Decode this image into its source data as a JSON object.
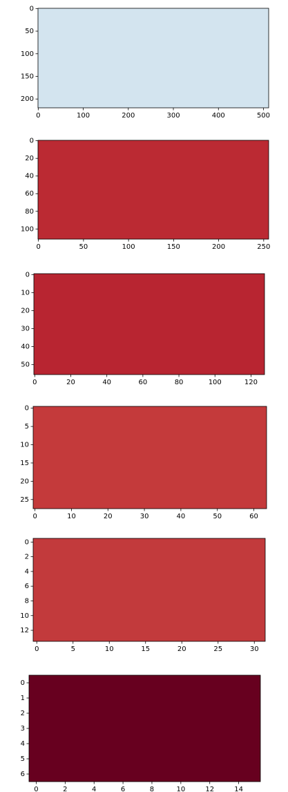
{
  "chart_data": [
    {
      "type": "heatmap",
      "xlim": [
        -0.5,
        511.5
      ],
      "ylim": [
        219.5,
        -0.5
      ],
      "xticks": [
        0,
        100,
        200,
        300,
        400,
        500
      ],
      "yticks": [
        0,
        50,
        100,
        150,
        200
      ],
      "color": "#d3e4ef"
    },
    {
      "type": "heatmap",
      "xlim": [
        -0.5,
        255.5
      ],
      "ylim": [
        111.5,
        -0.5
      ],
      "xticks": [
        0,
        50,
        100,
        150,
        200,
        250
      ],
      "yticks": [
        0,
        20,
        40,
        60,
        80,
        100
      ],
      "color": "#bb2a33"
    },
    {
      "type": "heatmap",
      "xlim": [
        -0.5,
        127.5
      ],
      "ylim": [
        55.5,
        -0.5
      ],
      "xticks": [
        0,
        20,
        40,
        60,
        80,
        100,
        120
      ],
      "yticks": [
        0,
        10,
        20,
        30,
        40,
        50
      ],
      "color": "#b82531"
    },
    {
      "type": "heatmap",
      "xlim": [
        -0.5,
        63.5
      ],
      "ylim": [
        27.5,
        -0.5
      ],
      "xticks": [
        0,
        10,
        20,
        30,
        40,
        50,
        60
      ],
      "yticks": [
        0,
        5,
        10,
        15,
        20,
        25
      ],
      "color": "#c43a3b"
    },
    {
      "type": "heatmap",
      "xlim": [
        -0.5,
        31.5
      ],
      "ylim": [
        13.5,
        -0.5
      ],
      "xticks": [
        0,
        5,
        10,
        15,
        20,
        25,
        30
      ],
      "yticks": [
        0,
        2,
        4,
        6,
        8,
        10,
        12
      ],
      "color": "#c23a3c"
    },
    {
      "type": "heatmap",
      "xlim": [
        -0.5,
        15.5
      ],
      "ylim": [
        6.5,
        -0.5
      ],
      "xticks": [
        0,
        2,
        4,
        6,
        8,
        10,
        12,
        14
      ],
      "yticks": [
        0,
        1,
        2,
        3,
        4,
        5,
        6
      ],
      "color": "#67001f"
    }
  ]
}
